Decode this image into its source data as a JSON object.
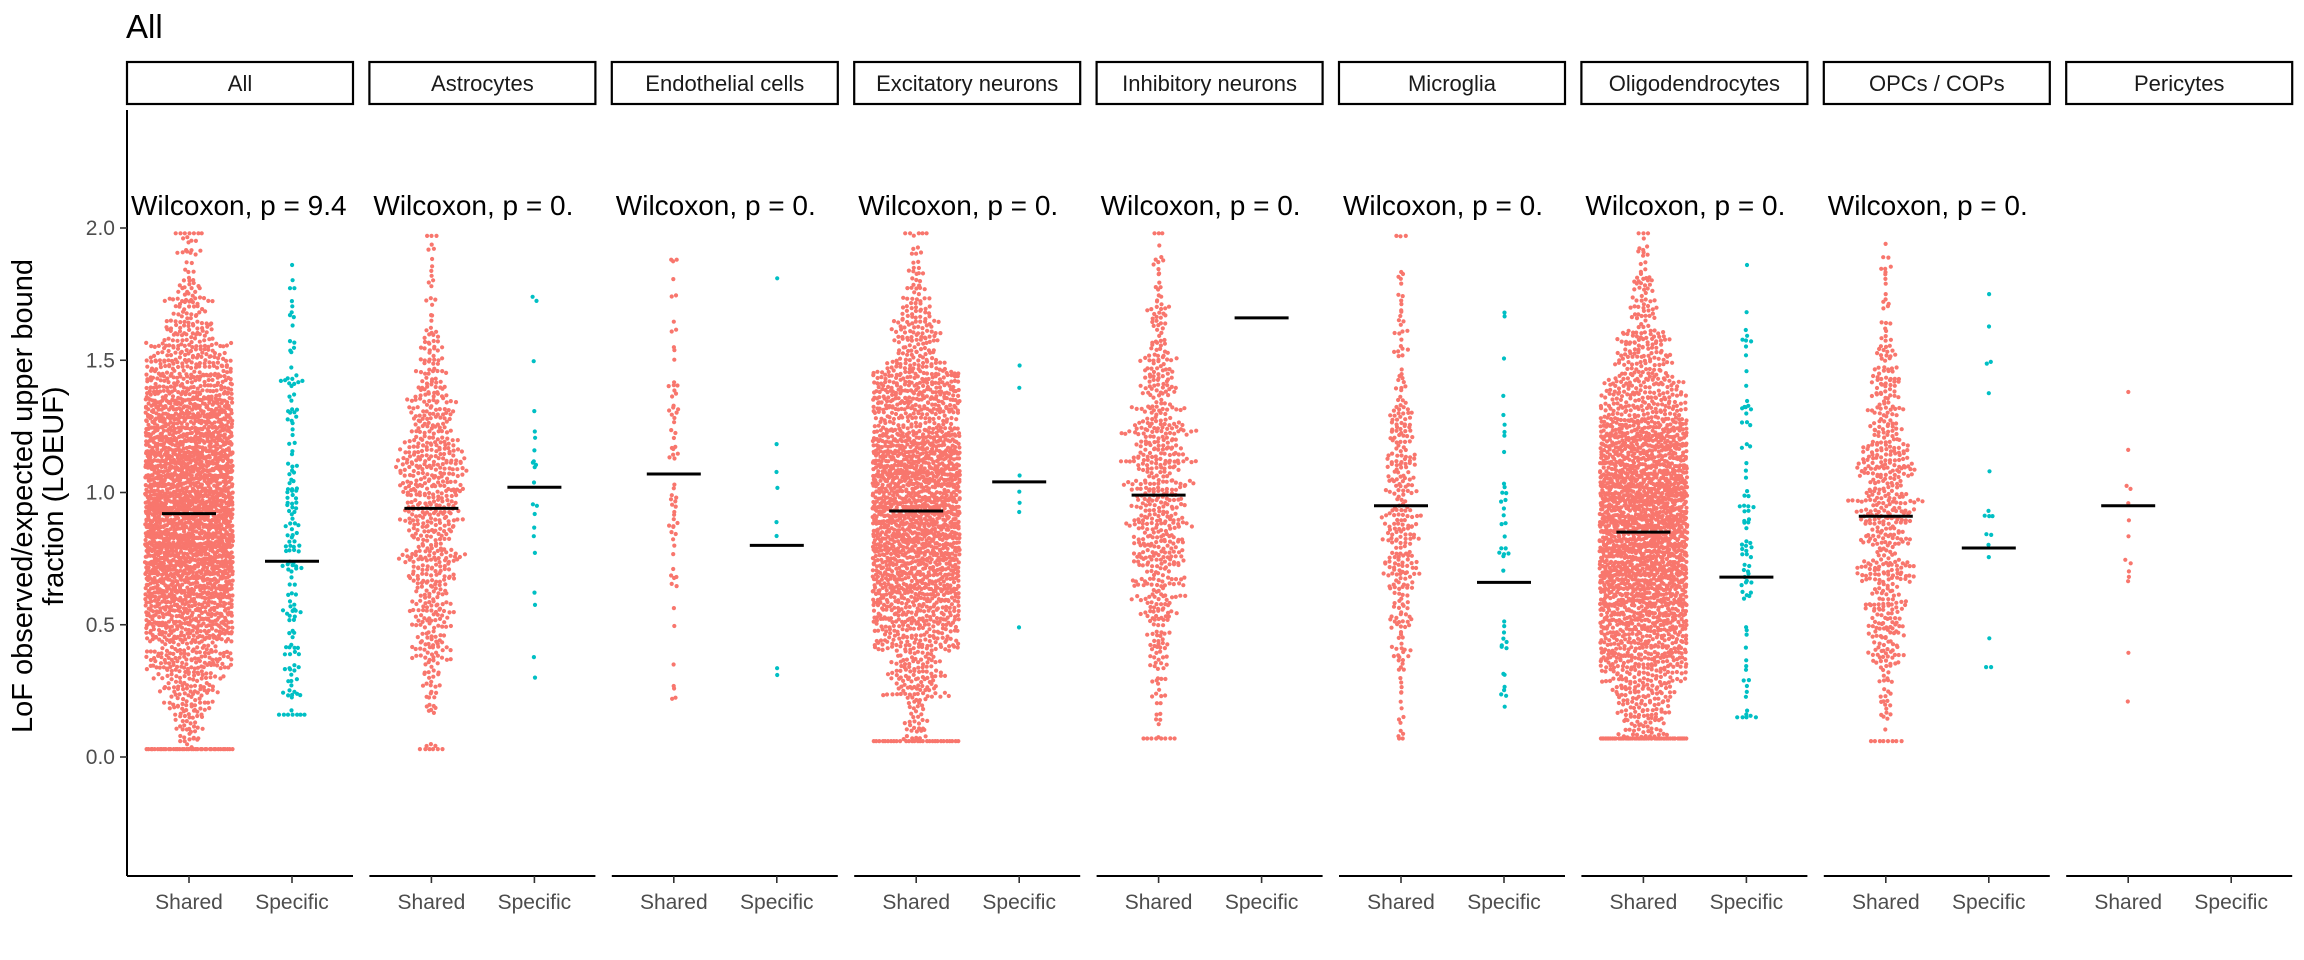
{
  "chart_data": {
    "type": "scatter",
    "subtype": "faceted beeswarm with median lines",
    "title": "All",
    "ylabel": "LoF observed/expected upper bound fraction (LOEUF)",
    "ylim": [
      -0.45,
      2.45
    ],
    "yticks": [
      0.0,
      0.5,
      1.0,
      1.5,
      2.0
    ],
    "ytick_labels": [
      "0.0",
      "0.5",
      "1.0",
      "1.5",
      "2.0"
    ],
    "grid": false,
    "legend": "none",
    "colors": {
      "Shared": "#F8766D",
      "Specific": "#00BFC4",
      "median": "#000000"
    },
    "categories": [
      "Shared",
      "Specific"
    ],
    "facets": [
      {
        "name": "All",
        "annotation": "Wilcoxon, p = 9.4",
        "groups": [
          {
            "category": "Shared",
            "median": 0.92,
            "n": 3000,
            "range": [
              0.03,
              1.98
            ]
          },
          {
            "category": "Specific",
            "median": 0.74,
            "n": 160,
            "range": [
              0.16,
              1.86
            ]
          }
        ]
      },
      {
        "name": "Astrocytes",
        "annotation": "Wilcoxon, p = 0.",
        "groups": [
          {
            "category": "Shared",
            "median": 0.94,
            "n": 700,
            "range": [
              0.03,
              1.97
            ]
          },
          {
            "category": "Specific",
            "median": 1.02,
            "n": 22,
            "range": [
              0.3,
              1.74
            ]
          }
        ]
      },
      {
        "name": "Endothelial cells",
        "annotation": "Wilcoxon, p = 0.",
        "groups": [
          {
            "category": "Shared",
            "median": 1.07,
            "n": 70,
            "range": [
              0.22,
              1.88
            ]
          },
          {
            "category": "Specific",
            "median": 0.8,
            "n": 8,
            "range": [
              0.31,
              1.81
            ]
          }
        ]
      },
      {
        "name": "Excitatory neurons",
        "annotation": "Wilcoxon, p = 0.",
        "groups": [
          {
            "category": "Shared",
            "median": 0.93,
            "n": 2200,
            "range": [
              0.06,
              1.98
            ]
          },
          {
            "category": "Specific",
            "median": 1.04,
            "n": 7,
            "range": [
              0.49,
              1.48
            ]
          }
        ]
      },
      {
        "name": "Inhibitory neurons",
        "annotation": "Wilcoxon, p = 0.",
        "groups": [
          {
            "category": "Shared",
            "median": 0.99,
            "n": 650,
            "range": [
              0.07,
              1.98
            ]
          },
          {
            "category": "Specific",
            "median": 1.66,
            "n": 0,
            "range": [
              1.66,
              1.66
            ]
          }
        ]
      },
      {
        "name": "Microglia",
        "annotation": "Wilcoxon, p = 0.",
        "groups": [
          {
            "category": "Shared",
            "median": 0.95,
            "n": 330,
            "range": [
              0.07,
              1.97
            ]
          },
          {
            "category": "Specific",
            "median": 0.66,
            "n": 42,
            "range": [
              0.19,
              1.68
            ]
          }
        ]
      },
      {
        "name": "Oligodendrocytes",
        "annotation": "Wilcoxon, p = 0.",
        "groups": [
          {
            "category": "Shared",
            "median": 0.85,
            "n": 2600,
            "range": [
              0.07,
              1.98
            ]
          },
          {
            "category": "Specific",
            "median": 0.68,
            "n": 85,
            "range": [
              0.15,
              1.86
            ]
          }
        ]
      },
      {
        "name": "OPCs / COPs",
        "annotation": "Wilcoxon, p = 0.",
        "groups": [
          {
            "category": "Shared",
            "median": 0.91,
            "n": 600,
            "range": [
              0.06,
              1.94
            ]
          },
          {
            "category": "Specific",
            "median": 0.79,
            "n": 17,
            "range": [
              0.34,
              1.75
            ]
          }
        ]
      },
      {
        "name": "Pericytes",
        "annotation": "",
        "groups": [
          {
            "category": "Shared",
            "median": 0.95,
            "n": 14,
            "range": [
              0.21,
              1.38
            ]
          },
          {
            "category": "Specific",
            "median": null,
            "n": 0,
            "range": null
          }
        ]
      }
    ]
  }
}
